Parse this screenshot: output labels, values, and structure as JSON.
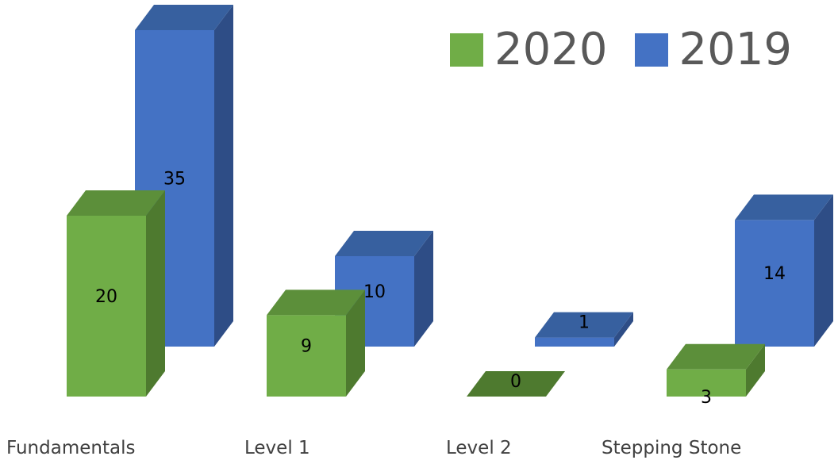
{
  "chart_data": {
    "type": "bar",
    "style": "3d-clustered-column",
    "categories": [
      "Fundamentals",
      "Level 1",
      "Level 2",
      "Stepping Stone"
    ],
    "series": [
      {
        "name": "2020",
        "values": [
          20,
          9,
          0,
          3
        ],
        "color": "#70ad47",
        "side_color": "#4e7a2f",
        "top_color": "#5c8f3a"
      },
      {
        "name": "2019",
        "values": [
          35,
          10,
          1,
          14
        ],
        "color": "#4472c4",
        "side_color": "#2e4d86",
        "top_color": "#37609f"
      }
    ],
    "data_labels": true,
    "legend_position": "top-right",
    "grid": false
  }
}
